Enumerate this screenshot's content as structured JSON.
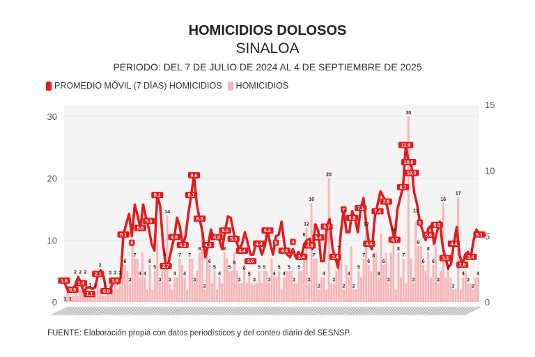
{
  "chart_data": {
    "type": "bar+line",
    "title": "HOMICIDIOS DOLOSOS",
    "subtitle": "SINALOA",
    "period": "PERIODO: DEL 7 DE JULIO DE 2024 AL 4 DE SEPTIEMBRE DE 2025",
    "legend": [
      "PROMEDIO MÓVIL (7 DÍAS) HOMICIDIOS",
      "HOMICIDIOS"
    ],
    "legend_placement": "top-left",
    "x_range": [
      "2024-07-07",
      "2025-09-04"
    ],
    "y_left": {
      "range": [
        0,
        30
      ],
      "ticks": [
        0,
        10,
        20,
        30
      ]
    },
    "y_right": {
      "range": [
        0,
        15
      ],
      "ticks": [
        0,
        5,
        10,
        15
      ]
    },
    "colors": {
      "line": "#e31a1c",
      "bars": "#f7b6b8",
      "plot_bg": "#f4f4f4"
    },
    "series": [
      {
        "name": "HOMICIDIOS",
        "axis": "left",
        "type": "bar",
        "values": [
          1,
          2,
          1,
          1,
          2,
          1,
          2,
          3,
          2,
          1,
          1,
          2,
          1,
          3,
          2,
          1,
          1,
          2,
          3,
          2,
          3,
          2,
          3,
          8,
          6,
          5,
          3,
          10,
          7,
          7,
          4,
          8,
          4,
          2,
          6,
          2,
          5,
          10,
          3,
          6,
          6,
          14,
          3,
          2,
          4,
          4,
          7,
          6,
          4,
          2,
          7,
          7,
          3,
          5,
          8,
          11,
          2,
          9,
          6,
          3,
          5,
          2,
          4,
          3,
          8,
          7,
          5,
          5,
          8,
          5,
          3,
          3,
          6,
          3,
          5,
          3,
          3,
          3,
          5,
          3,
          5,
          5,
          3,
          7,
          4,
          4,
          5,
          2,
          4,
          5,
          5,
          5,
          3,
          3,
          5,
          5,
          8,
          12,
          3,
          16,
          7,
          7,
          2,
          4,
          4,
          2,
          20,
          3,
          3,
          5,
          7,
          7,
          2,
          6,
          4,
          9,
          2,
          2,
          5,
          4,
          7,
          12,
          6,
          5,
          8,
          8,
          4,
          11,
          6,
          8,
          3,
          8,
          10,
          2,
          8,
          4,
          7,
          3,
          30,
          7,
          3,
          13,
          9,
          9,
          6,
          5,
          8,
          4,
          6,
          9,
          3,
          5,
          16,
          4,
          6,
          4,
          2,
          2,
          17,
          2,
          4,
          5,
          3,
          3,
          2,
          4,
          4
        ]
      },
      {
        "name": "PROMEDIO MÓVIL (7 DÍAS) HOMICIDIOS",
        "axis": "right",
        "type": "line",
        "values": [
          1.6,
          1.0,
          0.9,
          0.9,
          1.3,
          1.9,
          1.4,
          0.7,
          1.1,
          1.1,
          1.0,
          1.1,
          2.1,
          2.4,
          1.9,
          0.8,
          0.7,
          1.3,
          1.6,
          1.4,
          1.8,
          5.1,
          5.9,
          6.7,
          5.0,
          7.4,
          6.6,
          5.6,
          7.4,
          6.4,
          5.6,
          4.4,
          3.9,
          8.1,
          7.3,
          4.5,
          2.7,
          3.0,
          4.0,
          4.9,
          6.4,
          5.7,
          4.3,
          5.0,
          6.7,
          8.1,
          9.6,
          7.4,
          6.3,
          5.3,
          3.4,
          4.3,
          5.5,
          4.8,
          4.9,
          4.7,
          4.0,
          5.4,
          6.5,
          6.4,
          5.3,
          4.6,
          4.0,
          4.4,
          5.3,
          4.5,
          3.6,
          3.6,
          4.6,
          4.4,
          3.6,
          4.2,
          5.4,
          4.4,
          3.6,
          5.0,
          5.1,
          6.1,
          4.4,
          3.6,
          3.4,
          4.0,
          3.4,
          3.8,
          3.4,
          4.4,
          4.7,
          4.8,
          4.0,
          5.9,
          5.4,
          3.1,
          3.1,
          5.7,
          6.3,
          4.1,
          3.4,
          2.6,
          5.3,
          7.0,
          5.3,
          5.3,
          6.9,
          6.3,
          5.3,
          7.1,
          7.9,
          5.9,
          4.4,
          4.0,
          6.4,
          7.4,
          8.4,
          8.0,
          7.6,
          6.6,
          5.7,
          4.7,
          7.0,
          7.9,
          8.7,
          11.9,
          10.6,
          10.3,
          8.3,
          7.4,
          6.0,
          5.4,
          4.7,
          5.6,
          5.8,
          4.4,
          5.3,
          6.1,
          4.3,
          3.3,
          2.6,
          2.9,
          4.4,
          5.7,
          3.6,
          2.8,
          3.6,
          3.8,
          3.4,
          4.7,
          5.5,
          5.1
        ]
      }
    ]
  },
  "source": "FUENTE: Elaboración propia con datos periodísticos y del conteo diario del SESNSP."
}
